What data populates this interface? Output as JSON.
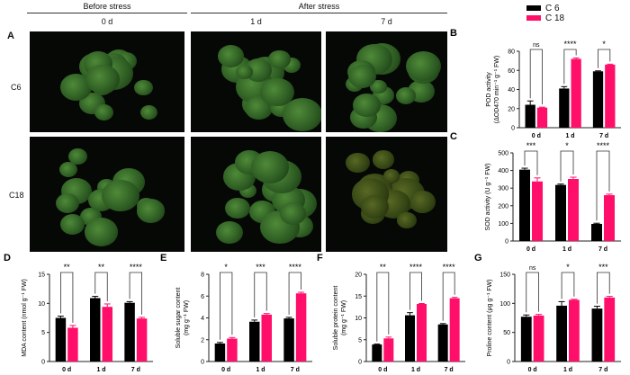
{
  "header": {
    "before": "Before stress",
    "after": "After stress",
    "days": [
      "0 d",
      "1 d",
      "7 d"
    ]
  },
  "panel_a": {
    "label": "A",
    "rows": [
      "C6",
      "C18"
    ]
  },
  "legend": {
    "items": [
      {
        "name": "C 6",
        "color": "#000000"
      },
      {
        "name": "C 18",
        "color": "#ff0f6a"
      }
    ]
  },
  "colors": {
    "c6": "#000000",
    "c18": "#ff0f6a"
  },
  "chart_data": [
    {
      "panel": "B",
      "type": "bar",
      "categories": [
        "0 d",
        "1 d",
        "7 d"
      ],
      "ylabel": [
        "POD activity",
        "(ΔOD470 min⁻¹ g⁻¹ FW)"
      ],
      "ylim": [
        0,
        80
      ],
      "yticks": [
        "0",
        "20",
        "40",
        "60",
        "80"
      ],
      "series": [
        {
          "name": "C 6",
          "values": [
            24,
            41,
            59
          ],
          "errors": [
            4,
            2,
            0.5
          ]
        },
        {
          "name": "C 18",
          "values": [
            21,
            72,
            66
          ],
          "errors": [
            0.5,
            1,
            0.5
          ]
        }
      ],
      "significance": [
        "ns",
        "****",
        "*"
      ]
    },
    {
      "panel": "C",
      "type": "bar",
      "categories": [
        "0 d",
        "1 d",
        "7 d"
      ],
      "ylabel": [
        "SOD activity (U g⁻¹ FW)"
      ],
      "ylim": [
        0,
        500
      ],
      "yticks": [
        "0",
        "100",
        "200",
        "300",
        "400",
        "500"
      ],
      "series": [
        {
          "name": "C 6",
          "values": [
            405,
            318,
            97
          ],
          "errors": [
            8,
            5,
            4
          ]
        },
        {
          "name": "C 18",
          "values": [
            338,
            352,
            260
          ],
          "errors": [
            20,
            10,
            6
          ]
        }
      ],
      "significance": [
        "***",
        "*",
        "****"
      ]
    },
    {
      "panel": "D",
      "type": "bar",
      "categories": [
        "0 d",
        "1 d",
        "7 d"
      ],
      "ylabel": [
        "MDA content (nmol g⁻¹ FW)"
      ],
      "ylim": [
        0,
        15
      ],
      "yticks": [
        "0",
        "5",
        "10",
        "15"
      ],
      "series": [
        {
          "name": "C 6",
          "values": [
            7.5,
            10.9,
            10.1
          ],
          "errors": [
            0.3,
            0.3,
            0.2
          ]
        },
        {
          "name": "C 18",
          "values": [
            5.8,
            9.4,
            7.4
          ],
          "errors": [
            0.4,
            0.5,
            0.2
          ]
        }
      ],
      "significance": [
        "**",
        "**",
        "****"
      ]
    },
    {
      "panel": "E",
      "type": "bar",
      "categories": [
        "0 d",
        "1 d",
        "7 d"
      ],
      "ylabel": [
        "Soluble sugar content",
        "(mg g⁻¹ FW)"
      ],
      "ylim": [
        0,
        8
      ],
      "yticks": [
        "0",
        "2",
        "4",
        "6",
        "8"
      ],
      "series": [
        {
          "name": "C 6",
          "values": [
            1.65,
            3.65,
            3.95
          ],
          "errors": [
            0.1,
            0.15,
            0.1
          ]
        },
        {
          "name": "C 18",
          "values": [
            2.1,
            4.3,
            6.25
          ],
          "errors": [
            0.1,
            0.1,
            0.1
          ]
        }
      ],
      "significance": [
        "*",
        "***",
        "****"
      ]
    },
    {
      "panel": "F",
      "type": "bar",
      "categories": [
        "0 d",
        "1 d",
        "7 d"
      ],
      "ylabel": [
        "Soluble protein content",
        "(mg g⁻¹ FW)"
      ],
      "ylim": [
        0,
        20
      ],
      "yticks": [
        "0",
        "5",
        "10",
        "15",
        "20"
      ],
      "series": [
        {
          "name": "C 6",
          "values": [
            3.9,
            10.6,
            8.5
          ],
          "errors": [
            0.1,
            0.6,
            0.2
          ]
        },
        {
          "name": "C 18",
          "values": [
            5.3,
            13.2,
            14.5
          ],
          "errors": [
            0.3,
            0.1,
            0.2
          ]
        }
      ],
      "significance": [
        "**",
        "****",
        "****"
      ]
    },
    {
      "panel": "G",
      "type": "bar",
      "categories": [
        "0 d",
        "1 d",
        "7 d"
      ],
      "ylabel": [
        "Proline content (μg g⁻¹ FW)"
      ],
      "ylim": [
        0,
        150
      ],
      "yticks": [
        "0",
        "50",
        "100",
        "150"
      ],
      "series": [
        {
          "name": "C 6",
          "values": [
            77,
            96,
            91
          ],
          "errors": [
            3,
            7,
            4
          ]
        },
        {
          "name": "C 18",
          "values": [
            79,
            106,
            110
          ],
          "errors": [
            2,
            1,
            2
          ]
        }
      ],
      "significance": [
        "ns",
        "*",
        "***"
      ]
    }
  ]
}
